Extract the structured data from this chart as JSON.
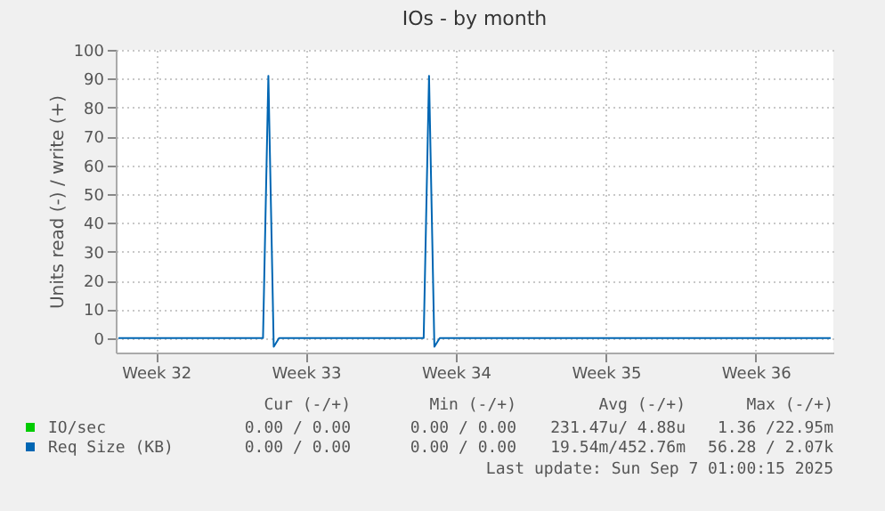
{
  "chart_data": {
    "type": "line",
    "title": "IOs - by month",
    "ylabel": "Units read (-) / write (+)",
    "categories": [
      null,
      null,
      null,
      null,
      null,
      null,
      null,
      "Week 32",
      null,
      null,
      null,
      null,
      null,
      null,
      null,
      null,
      null,
      null,
      null,
      null,
      null,
      null,
      null,
      null,
      null,
      null,
      null,
      null,
      null,
      null,
      null,
      null,
      null,
      null,
      null,
      "Week 33",
      null,
      null,
      null,
      null,
      null,
      null,
      null,
      null,
      null,
      null,
      null,
      null,
      null,
      null,
      null,
      null,
      null,
      null,
      null,
      null,
      null,
      null,
      null,
      null,
      null,
      null,
      null,
      "Week 34",
      null,
      null,
      null,
      null,
      null,
      null,
      null,
      null,
      null,
      null,
      null,
      null,
      null,
      null,
      null,
      null,
      null,
      null,
      null,
      null,
      null,
      null,
      null,
      null,
      null,
      null,
      null,
      "Week 35",
      null,
      null,
      null,
      null,
      null,
      null,
      null,
      null,
      null,
      null,
      null,
      null,
      null,
      null,
      null,
      null,
      null,
      null,
      null,
      null,
      null,
      null,
      null,
      null,
      null,
      null,
      null,
      "Week 36",
      null,
      null,
      null,
      null,
      null,
      null,
      null,
      null,
      null,
      null,
      null,
      null,
      null,
      null
    ],
    "ylim": [
      -5,
      100
    ],
    "yticks": [
      0,
      10,
      20,
      30,
      40,
      50,
      60,
      70,
      80,
      90,
      100
    ],
    "grid": true,
    "legend": "bottom",
    "series": [
      {
        "name": "IO/sec",
        "color": "#00cc00",
        "values": [
          null,
          null,
          null,
          null,
          null,
          null,
          null,
          null,
          null,
          null,
          null,
          null,
          null,
          null,
          null,
          null,
          null,
          null,
          null,
          null,
          null,
          null,
          null,
          null,
          null,
          null,
          null,
          null,
          null,
          null,
          null,
          null,
          null,
          null,
          null,
          null,
          null,
          null,
          null,
          null,
          null,
          null,
          null,
          null,
          null,
          null,
          null,
          null,
          null,
          null,
          null,
          null,
          null,
          null,
          null,
          null,
          null,
          null,
          null,
          null,
          null,
          null,
          null,
          null,
          null,
          null,
          null,
          null,
          null,
          null,
          null,
          null,
          null,
          null,
          null,
          null,
          null,
          null,
          null,
          null,
          null,
          null,
          null,
          null,
          null,
          null,
          null,
          null,
          null,
          null,
          null,
          null,
          null,
          null,
          null,
          null,
          null,
          null,
          null,
          null,
          null,
          null,
          null,
          null,
          null,
          null,
          null,
          null,
          null,
          null,
          null,
          null,
          null,
          null,
          null,
          null,
          null,
          null,
          null,
          null,
          null,
          null,
          null,
          null,
          null,
          null,
          null,
          null,
          null,
          null,
          null,
          null,
          null,
          null
        ]
      },
      {
        "name": "Req Size (KB)",
        "color": "#0066b3",
        "values": [
          0,
          0,
          0,
          0,
          0,
          0,
          0,
          0,
          0,
          0,
          0,
          0,
          0,
          0,
          0,
          0,
          0,
          0,
          0,
          0,
          0,
          0,
          0,
          0,
          0,
          0,
          0,
          0,
          91,
          -3,
          0,
          0,
          0,
          0,
          0,
          0,
          0,
          0,
          0,
          0,
          0,
          0,
          0,
          0,
          0,
          0,
          0,
          0,
          0,
          0,
          0,
          0,
          0,
          0,
          0,
          0,
          0,
          0,
          91,
          -3,
          0,
          0,
          0,
          0,
          0,
          0,
          0,
          0,
          0,
          0,
          0,
          0,
          0,
          0,
          0,
          0,
          0,
          0,
          0,
          0,
          0,
          0,
          0,
          0,
          0,
          0,
          0,
          0,
          0,
          0,
          0,
          0,
          0,
          0,
          0,
          0,
          0,
          0,
          0,
          0,
          0,
          0,
          0,
          0,
          0,
          0,
          0,
          0,
          0,
          0,
          0,
          0,
          0,
          0,
          0,
          0,
          0,
          0,
          0,
          0,
          0,
          0,
          0,
          0,
          0,
          0,
          0,
          0,
          0,
          0,
          0,
          0,
          0,
          0
        ]
      }
    ],
    "annotations": [
      "Cur (-/+)",
      "Min (-/+)",
      "Avg (-/+)",
      "Max (-/+)",
      "0.00 / 0.00",
      "0.00 / 0.00",
      "231.47u/ 4.88u",
      "1.36 /22.95m",
      "0.00 / 0.00",
      "0.00 / 0.00",
      "19.54m/452.76m",
      "56.28 / 2.07k",
      "Last update: Sun Sep  7 01:00:15 2025"
    ]
  }
}
